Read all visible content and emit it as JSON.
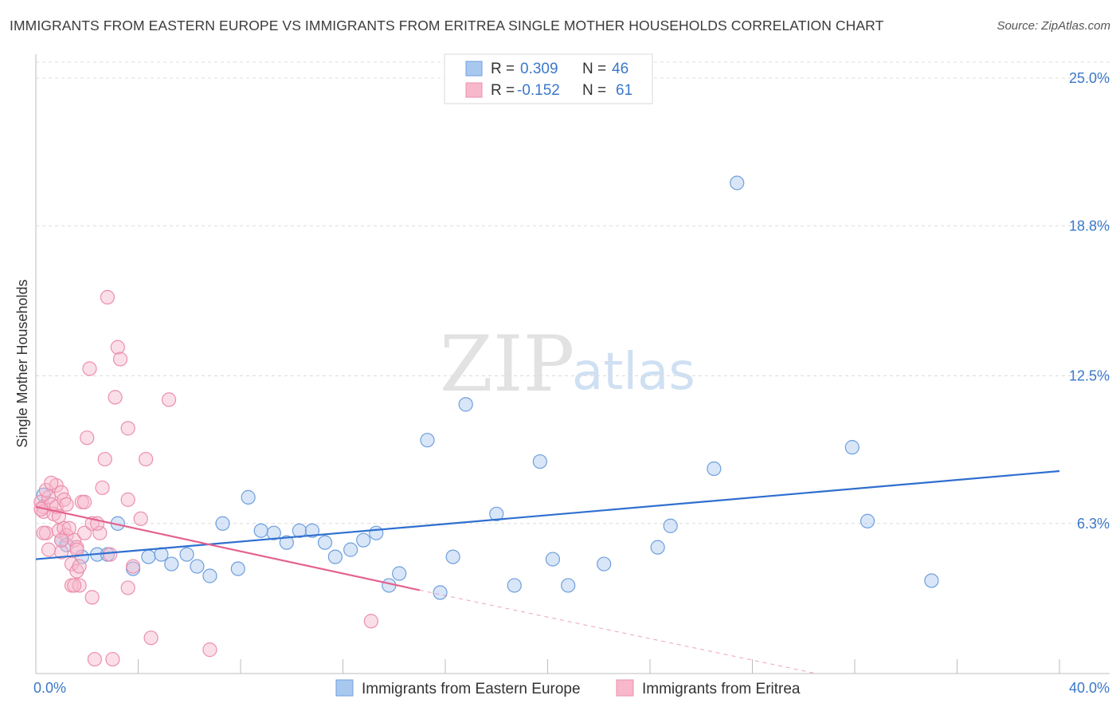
{
  "title": "IMMIGRANTS FROM EASTERN EUROPE VS IMMIGRANTS FROM ERITREA SINGLE MOTHER HOUSEHOLDS CORRELATION CHART",
  "source": "Source: ZipAtlas.com",
  "watermark": {
    "zip": "ZIP",
    "atlas": "atlas"
  },
  "colors": {
    "blue_fill": "#a9c8f0",
    "blue_stroke": "#6f9fdc",
    "blue_line": "#2f6fcf",
    "pink_fill": "#f7b8cb",
    "pink_stroke": "#ec8fac",
    "pink_line": "#e4628f",
    "grid": "#dcdcdc",
    "tick_text": "#3a78c9"
  },
  "legend": {
    "rows": [
      {
        "r_label": "R =",
        "r_value": "0.309",
        "n_label": "N =",
        "n_value": "46",
        "series": "blue"
      },
      {
        "r_label": "R =",
        "r_value": "-0.152",
        "n_label": "N =",
        "n_value": "61",
        "series": "pink"
      }
    ]
  },
  "chart_data": {
    "type": "scatter",
    "title": "IMMIGRANTS FROM EASTERN EUROPE VS IMMIGRANTS FROM ERITREA SINGLE MOTHER HOUSEHOLDS CORRELATION CHART",
    "xlabel": "",
    "ylabel": "Single Mother Households",
    "xlim": [
      0,
      40
    ],
    "ylim": [
      0,
      25
    ],
    "x_tick_labels": [
      "0.0%",
      "40.0%"
    ],
    "y_ticks": [
      6.3,
      12.5,
      18.8,
      25.0
    ],
    "y_tick_labels": [
      "6.3%",
      "12.5%",
      "18.8%",
      "25.0%"
    ],
    "grid": true,
    "series": [
      {
        "name": "Immigrants from Eastern Europe",
        "color": "blue",
        "trend": {
          "x": [
            0,
            40
          ],
          "y": [
            4.8,
            8.5
          ],
          "style": "solid"
        },
        "points": [
          [
            0.3,
            7.5
          ],
          [
            1.0,
            5.6
          ],
          [
            1.2,
            5.4
          ],
          [
            1.8,
            4.9
          ],
          [
            2.4,
            5.0
          ],
          [
            2.8,
            5.0
          ],
          [
            3.2,
            6.3
          ],
          [
            3.8,
            4.4
          ],
          [
            4.4,
            4.9
          ],
          [
            4.9,
            5.0
          ],
          [
            5.3,
            4.6
          ],
          [
            5.9,
            5.0
          ],
          [
            6.3,
            4.5
          ],
          [
            6.8,
            4.1
          ],
          [
            7.3,
            6.3
          ],
          [
            7.9,
            4.4
          ],
          [
            8.3,
            7.4
          ],
          [
            8.8,
            6.0
          ],
          [
            9.3,
            5.9
          ],
          [
            9.8,
            5.5
          ],
          [
            10.3,
            6.0
          ],
          [
            10.8,
            6.0
          ],
          [
            11.3,
            5.5
          ],
          [
            11.7,
            4.9
          ],
          [
            12.3,
            5.2
          ],
          [
            12.8,
            5.6
          ],
          [
            13.3,
            5.9
          ],
          [
            13.8,
            3.7
          ],
          [
            14.2,
            4.2
          ],
          [
            15.3,
            9.8
          ],
          [
            15.8,
            3.4
          ],
          [
            16.3,
            4.9
          ],
          [
            16.8,
            11.3
          ],
          [
            18.0,
            6.7
          ],
          [
            18.7,
            3.7
          ],
          [
            19.7,
            8.9
          ],
          [
            20.2,
            4.8
          ],
          [
            20.8,
            3.7
          ],
          [
            22.2,
            4.6
          ],
          [
            24.3,
            5.3
          ],
          [
            24.8,
            6.2
          ],
          [
            26.5,
            8.6
          ],
          [
            27.4,
            20.6
          ],
          [
            31.9,
            9.5
          ],
          [
            32.5,
            6.4
          ],
          [
            35.0,
            3.9
          ]
        ]
      },
      {
        "name": "Immigrants from Eritrea",
        "color": "pink",
        "trend": {
          "x": [
            0,
            15
          ],
          "y": [
            7.0,
            3.5
          ],
          "style": "solid",
          "extension": {
            "x": [
              15,
              30.5
            ],
            "y": [
              3.5,
              0.0
            ],
            "style": "dashed"
          }
        },
        "points": [
          [
            0.2,
            7.2
          ],
          [
            0.3,
            7.0
          ],
          [
            0.3,
            6.8
          ],
          [
            0.4,
            5.9
          ],
          [
            0.5,
            7.4
          ],
          [
            0.5,
            5.2
          ],
          [
            0.6,
            7.1
          ],
          [
            0.7,
            6.7
          ],
          [
            0.8,
            7.9
          ],
          [
            0.8,
            7.0
          ],
          [
            0.9,
            6.0
          ],
          [
            1.0,
            5.1
          ],
          [
            1.0,
            7.6
          ],
          [
            1.1,
            6.1
          ],
          [
            1.1,
            7.3
          ],
          [
            1.2,
            5.8
          ],
          [
            1.3,
            6.1
          ],
          [
            1.4,
            4.6
          ],
          [
            1.4,
            3.7
          ],
          [
            1.5,
            5.6
          ],
          [
            1.6,
            5.3
          ],
          [
            1.6,
            4.3
          ],
          [
            1.7,
            3.7
          ],
          [
            1.7,
            4.5
          ],
          [
            1.8,
            7.2
          ],
          [
            1.9,
            5.9
          ],
          [
            2.0,
            9.9
          ],
          [
            2.1,
            12.8
          ],
          [
            2.2,
            6.3
          ],
          [
            2.2,
            3.2
          ],
          [
            2.3,
            0.6
          ],
          [
            2.5,
            5.9
          ],
          [
            2.6,
            7.8
          ],
          [
            2.7,
            9.0
          ],
          [
            2.8,
            15.8
          ],
          [
            3.1,
            11.6
          ],
          [
            3.2,
            13.7
          ],
          [
            3.3,
            13.2
          ],
          [
            3.6,
            10.3
          ],
          [
            3.6,
            7.3
          ],
          [
            3.8,
            4.5
          ],
          [
            3.6,
            3.6
          ],
          [
            4.1,
            6.5
          ],
          [
            4.3,
            9.0
          ],
          [
            4.5,
            1.5
          ],
          [
            5.2,
            11.5
          ],
          [
            6.8,
            1.0
          ],
          [
            13.1,
            2.2
          ],
          [
            3.0,
            0.6
          ],
          [
            1.5,
            3.7
          ],
          [
            1.9,
            7.2
          ],
          [
            0.4,
            7.7
          ],
          [
            0.2,
            6.9
          ],
          [
            0.9,
            6.6
          ],
          [
            1.2,
            7.1
          ],
          [
            2.4,
            6.3
          ],
          [
            0.6,
            8.0
          ],
          [
            1.6,
            5.2
          ],
          [
            1.0,
            5.6
          ],
          [
            0.3,
            5.9
          ],
          [
            2.9,
            5.0
          ]
        ]
      }
    ],
    "legend": [
      "Immigrants from Eastern Europe",
      "Immigrants from Eritrea"
    ],
    "legend_position": "top-center"
  }
}
